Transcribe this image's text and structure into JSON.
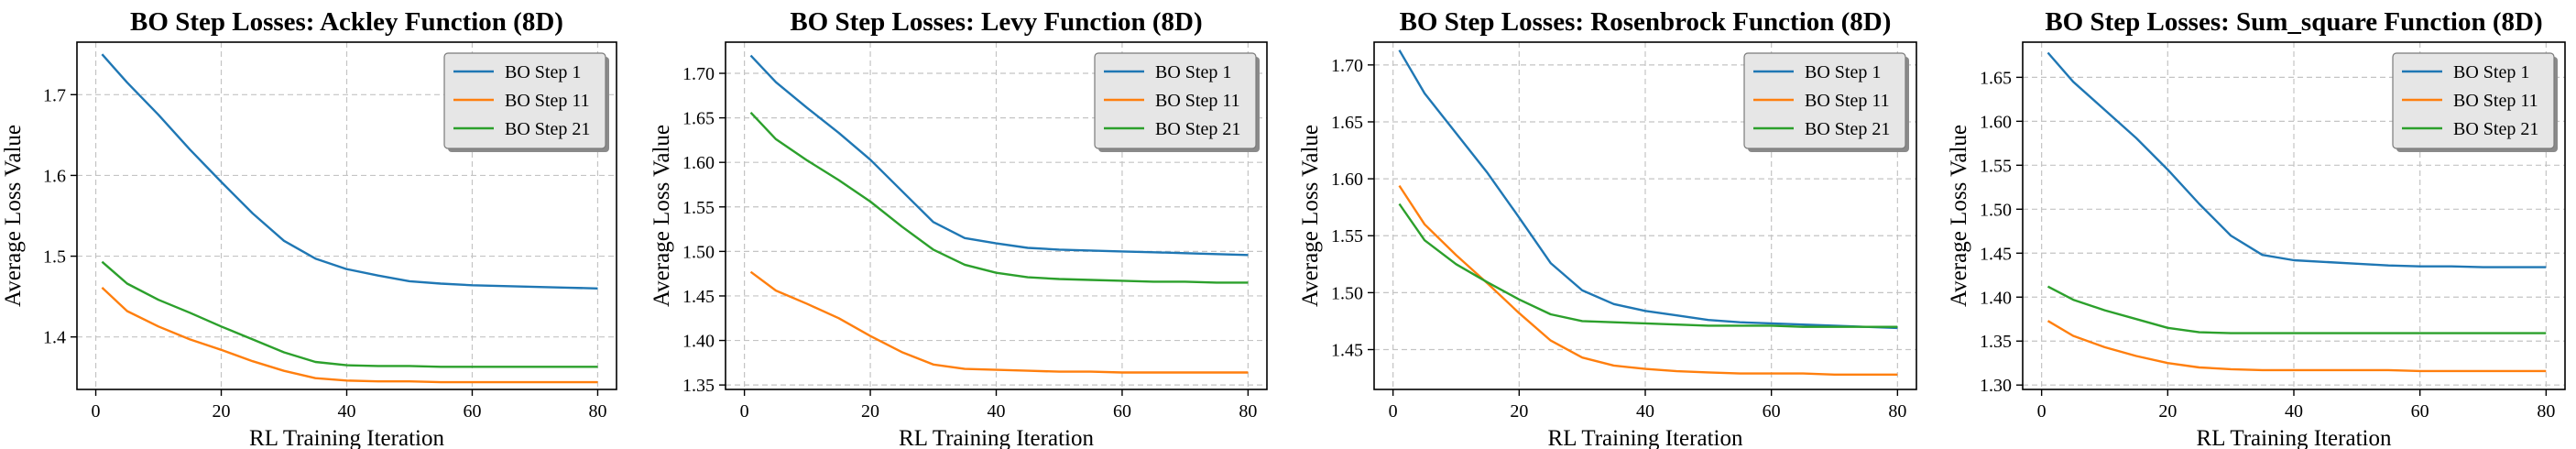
{
  "chart_data": [
    {
      "type": "line",
      "title": "BO Step Losses: Ackley Function (8D)",
      "xlabel": "RL Training Iteration",
      "ylabel": "Average Loss Value",
      "xlim": [
        -3,
        83
      ],
      "ylim": [
        1.335,
        1.765
      ],
      "xticks": [
        0,
        20,
        40,
        60,
        80
      ],
      "yticks": [
        1.4,
        1.5,
        1.6,
        1.7
      ],
      "ytick_labels": [
        "1.4",
        "1.5",
        "1.6",
        "1.7"
      ],
      "grid": true,
      "legend_position": "top-right",
      "x": [
        1,
        5,
        10,
        15,
        20,
        25,
        30,
        35,
        40,
        45,
        50,
        55,
        60,
        65,
        70,
        75,
        80
      ],
      "series": [
        {
          "name": "BO Step 1",
          "color": "#1f77b4",
          "values": [
            1.75,
            1.715,
            1.675,
            1.632,
            1.592,
            1.553,
            1.519,
            1.497,
            1.484,
            1.476,
            1.469,
            1.466,
            1.464,
            1.463,
            1.462,
            1.461,
            1.46
          ]
        },
        {
          "name": "BO Step 11",
          "color": "#ff7f0e",
          "values": [
            1.461,
            1.432,
            1.413,
            1.397,
            1.384,
            1.37,
            1.358,
            1.349,
            1.346,
            1.345,
            1.345,
            1.344,
            1.344,
            1.344,
            1.344,
            1.344,
            1.344
          ]
        },
        {
          "name": "BO Step 21",
          "color": "#2ca02c",
          "values": [
            1.493,
            1.466,
            1.446,
            1.43,
            1.413,
            1.397,
            1.381,
            1.369,
            1.365,
            1.364,
            1.364,
            1.363,
            1.363,
            1.363,
            1.363,
            1.363,
            1.363
          ]
        }
      ]
    },
    {
      "type": "line",
      "title": "BO Step Losses: Levy Function (8D)",
      "xlabel": "RL Training Iteration",
      "ylabel": "Average Loss Value",
      "xlim": [
        -3,
        83
      ],
      "ylim": [
        1.345,
        1.735
      ],
      "xticks": [
        0,
        20,
        40,
        60,
        80
      ],
      "yticks": [
        1.35,
        1.4,
        1.45,
        1.5,
        1.55,
        1.6,
        1.65,
        1.7
      ],
      "ytick_labels": [
        "1.35",
        "1.40",
        "1.45",
        "1.50",
        "1.55",
        "1.60",
        "1.65",
        "1.70"
      ],
      "grid": true,
      "legend_position": "top-right",
      "x": [
        1,
        5,
        10,
        15,
        20,
        25,
        30,
        35,
        40,
        45,
        50,
        55,
        60,
        65,
        70,
        75,
        80
      ],
      "series": [
        {
          "name": "BO Step 1",
          "color": "#1f77b4",
          "values": [
            1.72,
            1.69,
            1.661,
            1.633,
            1.603,
            1.568,
            1.533,
            1.515,
            1.509,
            1.504,
            1.502,
            1.501,
            1.5,
            1.499,
            1.498,
            1.497,
            1.496
          ]
        },
        {
          "name": "BO Step 11",
          "color": "#ff7f0e",
          "values": [
            1.477,
            1.456,
            1.441,
            1.425,
            1.405,
            1.387,
            1.373,
            1.368,
            1.367,
            1.366,
            1.365,
            1.365,
            1.364,
            1.364,
            1.364,
            1.364,
            1.364
          ]
        },
        {
          "name": "BO Step 21",
          "color": "#2ca02c",
          "values": [
            1.656,
            1.626,
            1.602,
            1.58,
            1.556,
            1.528,
            1.502,
            1.485,
            1.476,
            1.471,
            1.469,
            1.468,
            1.467,
            1.466,
            1.466,
            1.465,
            1.465
          ]
        }
      ]
    },
    {
      "type": "line",
      "title": "BO Step Losses: Rosenbrock Function (8D)",
      "xlabel": "RL Training Iteration",
      "ylabel": "Average Loss Value",
      "xlim": [
        -3,
        83
      ],
      "ylim": [
        1.415,
        1.72
      ],
      "xticks": [
        0,
        20,
        40,
        60,
        80
      ],
      "yticks": [
        1.45,
        1.5,
        1.55,
        1.6,
        1.65,
        1.7
      ],
      "ytick_labels": [
        "1.45",
        "1.50",
        "1.55",
        "1.60",
        "1.65",
        "1.70"
      ],
      "grid": true,
      "legend_position": "top-right",
      "x": [
        1,
        5,
        10,
        15,
        20,
        25,
        30,
        35,
        40,
        45,
        50,
        55,
        60,
        65,
        70,
        75,
        80
      ],
      "series": [
        {
          "name": "BO Step 1",
          "color": "#1f77b4",
          "values": [
            1.713,
            1.675,
            1.64,
            1.605,
            1.566,
            1.526,
            1.502,
            1.49,
            1.484,
            1.48,
            1.476,
            1.474,
            1.473,
            1.472,
            1.471,
            1.47,
            1.469
          ]
        },
        {
          "name": "BO Step 11",
          "color": "#ff7f0e",
          "values": [
            1.594,
            1.56,
            1.533,
            1.508,
            1.482,
            1.458,
            1.443,
            1.436,
            1.433,
            1.431,
            1.43,
            1.429,
            1.429,
            1.429,
            1.428,
            1.428,
            1.428
          ]
        },
        {
          "name": "BO Step 21",
          "color": "#2ca02c",
          "values": [
            1.578,
            1.546,
            1.525,
            1.509,
            1.494,
            1.481,
            1.475,
            1.474,
            1.473,
            1.472,
            1.471,
            1.471,
            1.471,
            1.47,
            1.47,
            1.47,
            1.47
          ]
        }
      ]
    },
    {
      "type": "line",
      "title": "BO Step Losses: Sum_square Function (8D)",
      "xlabel": "RL Training Iteration",
      "ylabel": "Average Loss Value",
      "xlim": [
        -3,
        83
      ],
      "ylim": [
        1.295,
        1.69
      ],
      "xticks": [
        0,
        20,
        40,
        60,
        80
      ],
      "yticks": [
        1.3,
        1.35,
        1.4,
        1.45,
        1.5,
        1.55,
        1.6,
        1.65
      ],
      "ytick_labels": [
        "1.30",
        "1.35",
        "1.40",
        "1.45",
        "1.50",
        "1.55",
        "1.60",
        "1.65"
      ],
      "grid": true,
      "legend_position": "top-right",
      "x": [
        1,
        5,
        10,
        15,
        20,
        25,
        30,
        35,
        40,
        45,
        50,
        55,
        60,
        65,
        70,
        75,
        80
      ],
      "series": [
        {
          "name": "BO Step 1",
          "color": "#1f77b4",
          "values": [
            1.678,
            1.645,
            1.613,
            1.581,
            1.545,
            1.506,
            1.47,
            1.448,
            1.442,
            1.44,
            1.438,
            1.436,
            1.435,
            1.435,
            1.434,
            1.434,
            1.434
          ]
        },
        {
          "name": "BO Step 11",
          "color": "#ff7f0e",
          "values": [
            1.373,
            1.356,
            1.343,
            1.333,
            1.325,
            1.32,
            1.318,
            1.317,
            1.317,
            1.317,
            1.317,
            1.317,
            1.316,
            1.316,
            1.316,
            1.316,
            1.316
          ]
        },
        {
          "name": "BO Step 21",
          "color": "#2ca02c",
          "values": [
            1.412,
            1.397,
            1.385,
            1.375,
            1.365,
            1.36,
            1.359,
            1.359,
            1.359,
            1.359,
            1.359,
            1.359,
            1.359,
            1.359,
            1.359,
            1.359,
            1.359
          ]
        }
      ]
    }
  ]
}
